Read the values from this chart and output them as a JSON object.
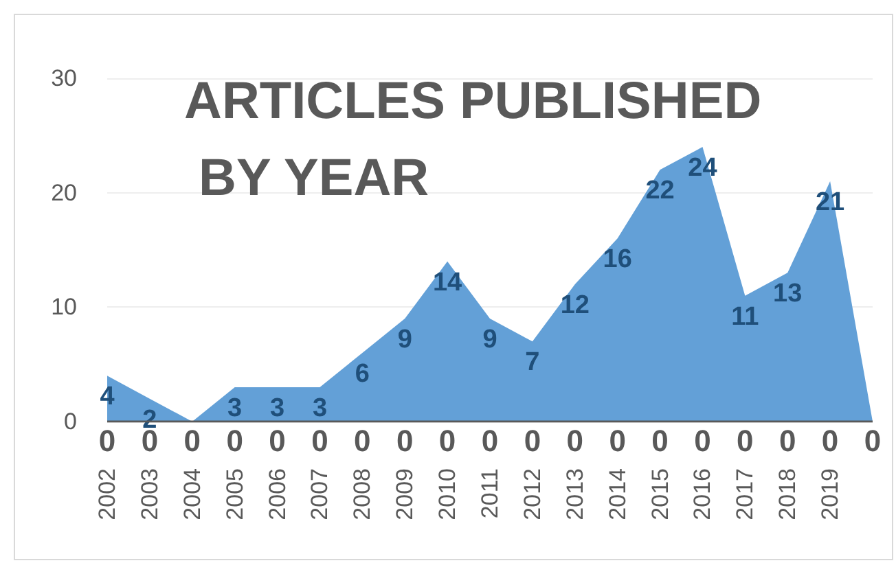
{
  "chart_data": {
    "type": "area",
    "title": "ARTICLES PUBLISHED BY YEAR",
    "categories": [
      "2002",
      "2003",
      "2004",
      "2005",
      "2006",
      "2007",
      "2008",
      "2009",
      "2010",
      "2011",
      "2012",
      "2013",
      "2014",
      "2015",
      "2016",
      "2017",
      "2018",
      "2019",
      null
    ],
    "series": [
      {
        "color": "#5b9bd5",
        "values": [
          4,
          2,
          0,
          3,
          3,
          3,
          6,
          9,
          14,
          9,
          7,
          12,
          16,
          22,
          24,
          11,
          13,
          21,
          0
        ],
        "value_labels": [
          "4",
          "2",
          null,
          "3",
          "3",
          "3",
          "6",
          "9",
          "14",
          "9",
          "7",
          "12",
          "16",
          "22",
          "24",
          "11",
          "13",
          "21",
          null
        ]
      },
      {
        "type": "line",
        "color": "#595959",
        "values": [
          0,
          0,
          0,
          0,
          0,
          0,
          0,
          0,
          0,
          0,
          0,
          0,
          0,
          0,
          0,
          0,
          0,
          0,
          0
        ],
        "value_labels": [
          "0",
          "0",
          "0",
          "0",
          "0",
          "0",
          "0",
          "0",
          "0",
          "0",
          "0",
          "0",
          "0",
          "0",
          "0",
          "0",
          "0",
          "0",
          "0"
        ]
      }
    ],
    "ylim": [
      0,
      30
    ],
    "yticks": [
      0,
      10,
      20,
      30
    ],
    "grid": "y",
    "legend": false
  }
}
